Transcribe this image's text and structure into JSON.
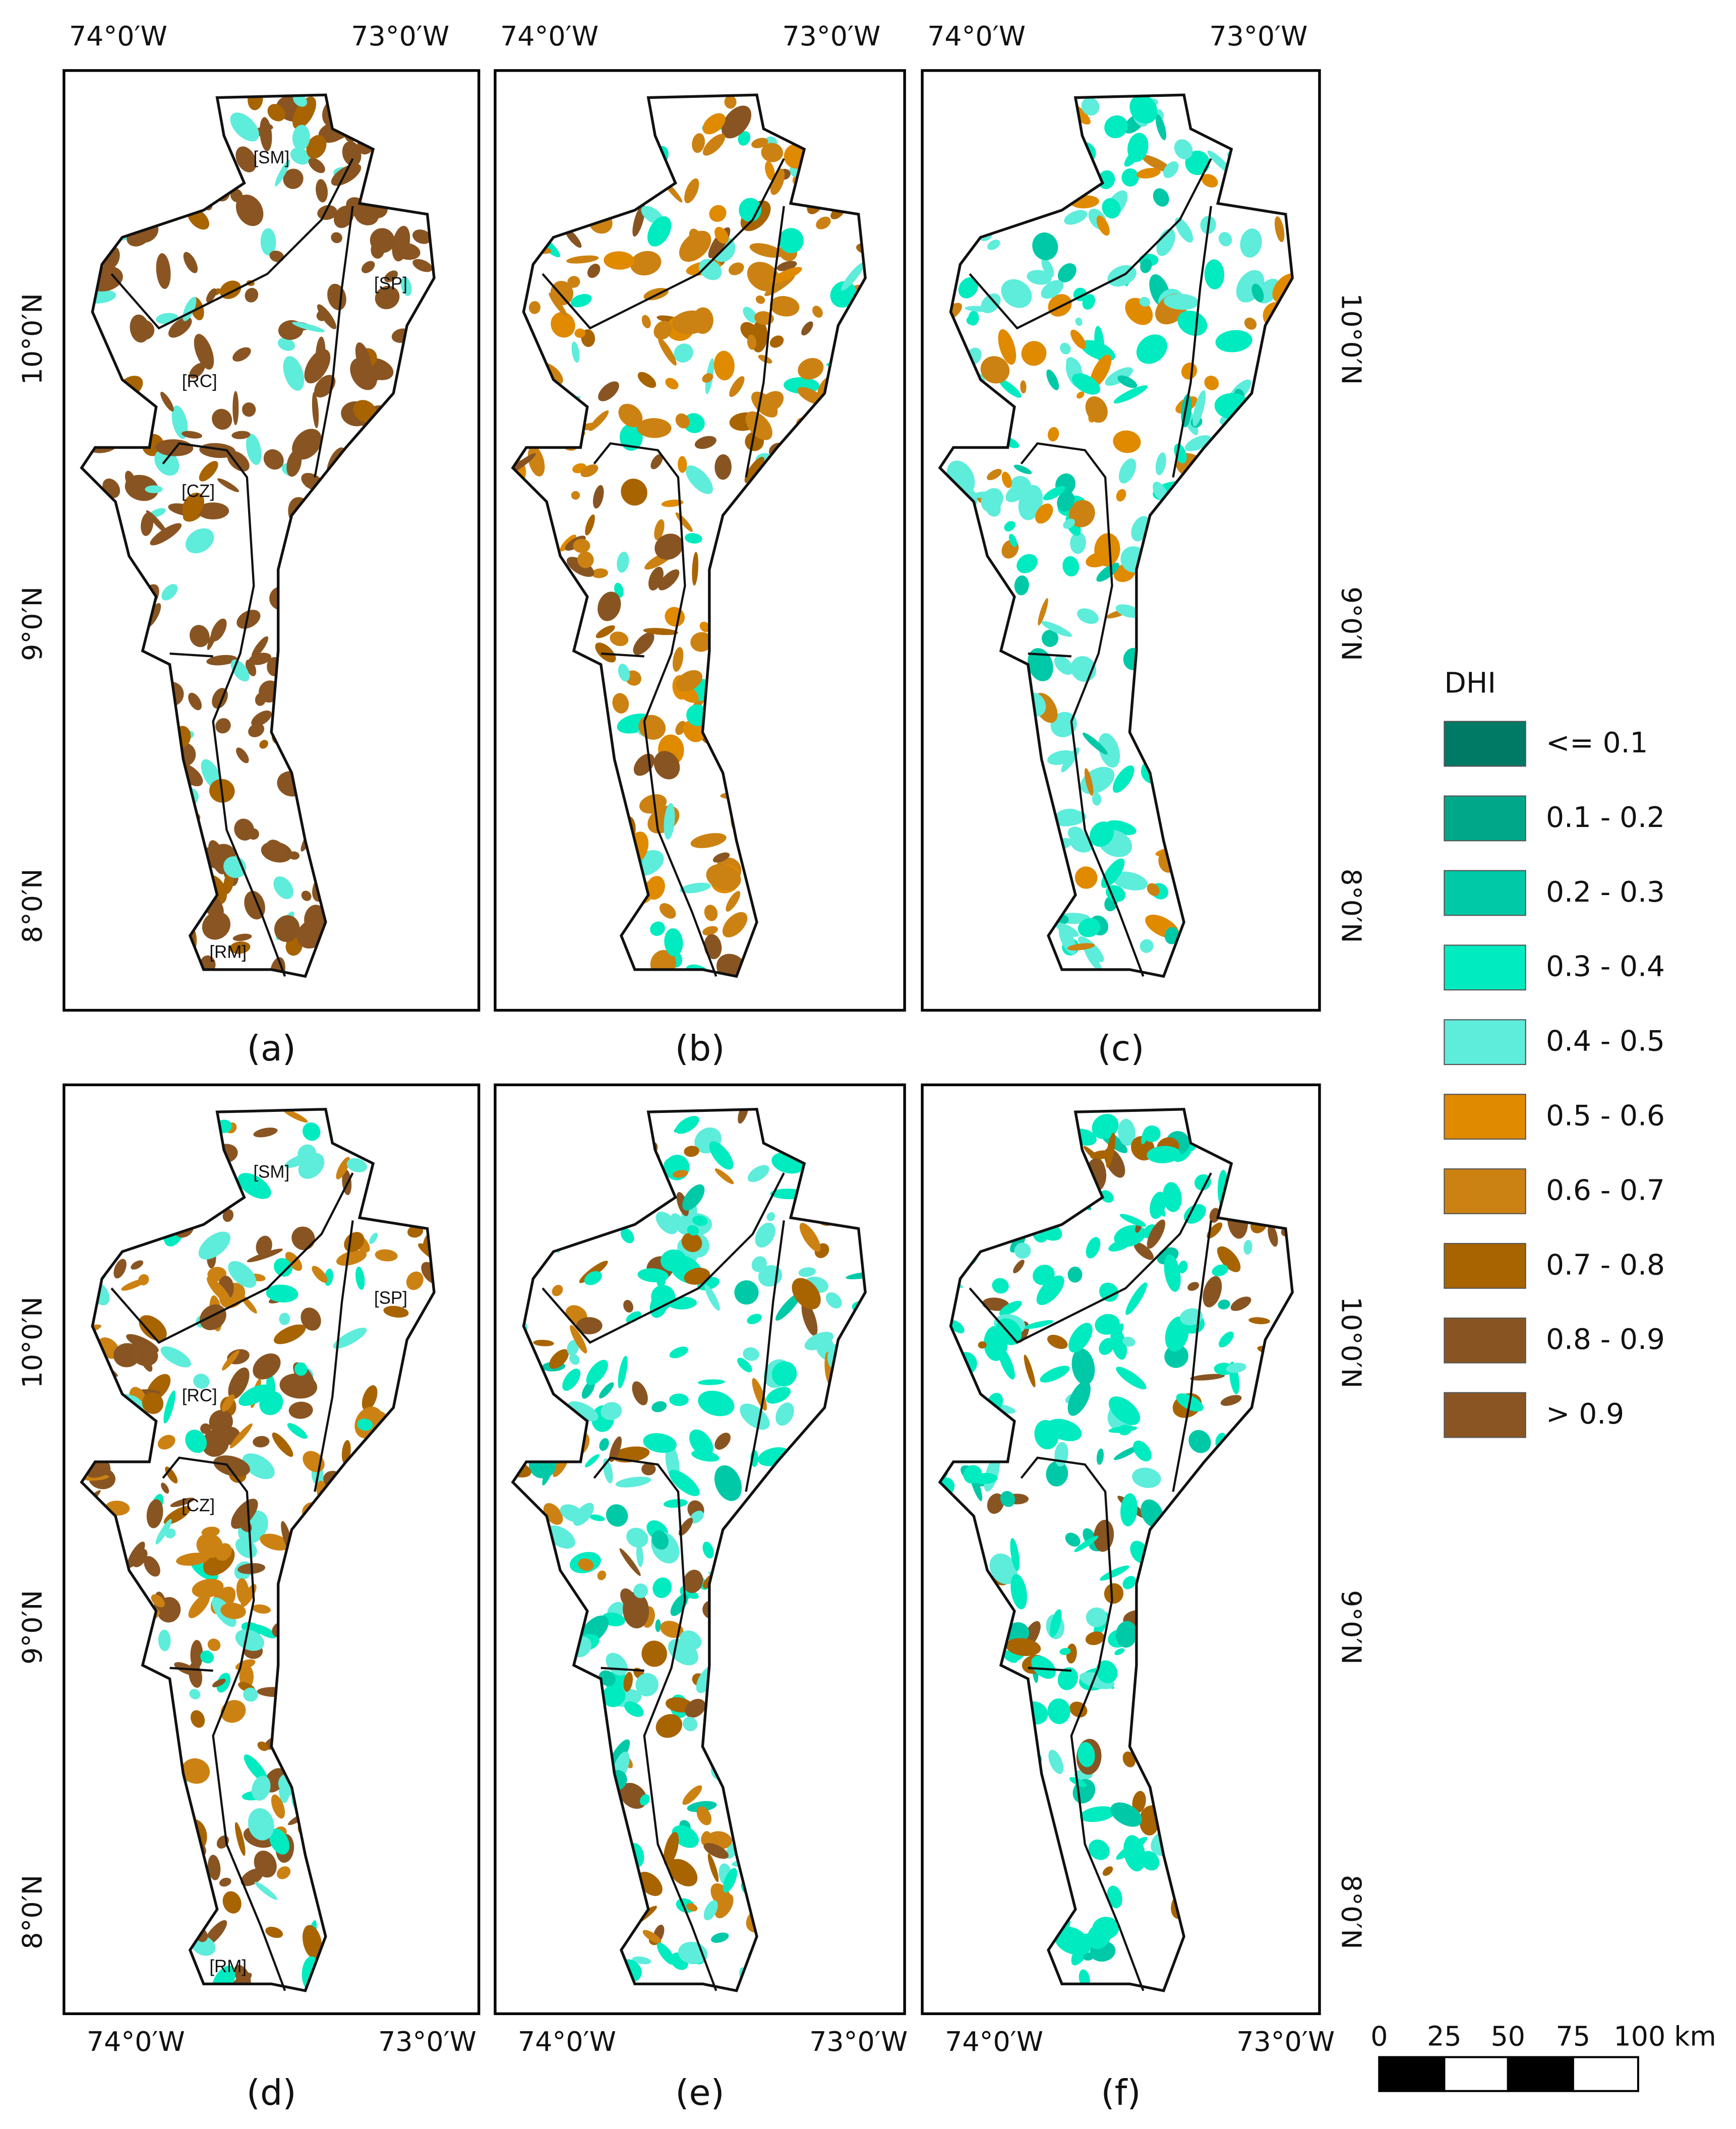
{
  "panels": [
    {
      "label": "(a)",
      "lon_labels": [
        "74°0′W",
        "73°0′W"
      ],
      "lat_labels": [
        "10°0′N",
        "9°0′N",
        "8°0′N"
      ],
      "regions": [
        "[SM]",
        "[SP]",
        "[RC]",
        "[CZ]",
        "[RM]"
      ]
    },
    {
      "label": "(b)",
      "lon_labels": [
        "74°0′W",
        "73°0′W"
      ]
    },
    {
      "label": "(c)",
      "lon_labels": [
        "74°0′W",
        "73°0′W"
      ],
      "lat_labels": [
        "10°0′N",
        "9°0′N",
        "8°0′N"
      ]
    },
    {
      "label": "(d)",
      "lon_labels": [
        "74°0′W",
        "73°0′W"
      ],
      "lat_labels": [
        "10°0′N",
        "9°0′N",
        "8°0′N"
      ],
      "regions": [
        "[SM]",
        "[SP]",
        "[RC]",
        "[CZ]",
        "[RM]"
      ]
    },
    {
      "label": "(e)",
      "lon_labels": [
        "74°0′W",
        "73°0′W"
      ]
    },
    {
      "label": "(f)",
      "lon_labels": [
        "74°0′W",
        "73°0′W"
      ],
      "lat_labels": [
        "10°0′N",
        "9°0′N",
        "8°0′N"
      ]
    }
  ],
  "legend": {
    "title": "DHI",
    "items": [
      {
        "label": "<= 0.1",
        "color": "#007a65"
      },
      {
        "label": "0.1 - 0.2",
        "color": "#00a88a"
      },
      {
        "label": "0.2 - 0.3",
        "color": "#00c9a7"
      },
      {
        "label": "0.3 - 0.4",
        "color": "#00ebc0"
      },
      {
        "label": "0.4 - 0.5",
        "color": "#5eecdb"
      },
      {
        "label": "0.5 - 0.6",
        "color": "#e08a00"
      },
      {
        "label": "0.6 - 0.7",
        "color": "#cc8212"
      },
      {
        "label": "0.7 - 0.8",
        "color": "#a86400"
      },
      {
        "label": "0.8 - 0.9",
        "color": "#885522"
      },
      {
        "label": "> 0.9",
        "color": "#8a5522"
      }
    ]
  },
  "scale_bar": {
    "labels": [
      "0",
      "25",
      "50",
      "75",
      "100 km"
    ]
  }
}
